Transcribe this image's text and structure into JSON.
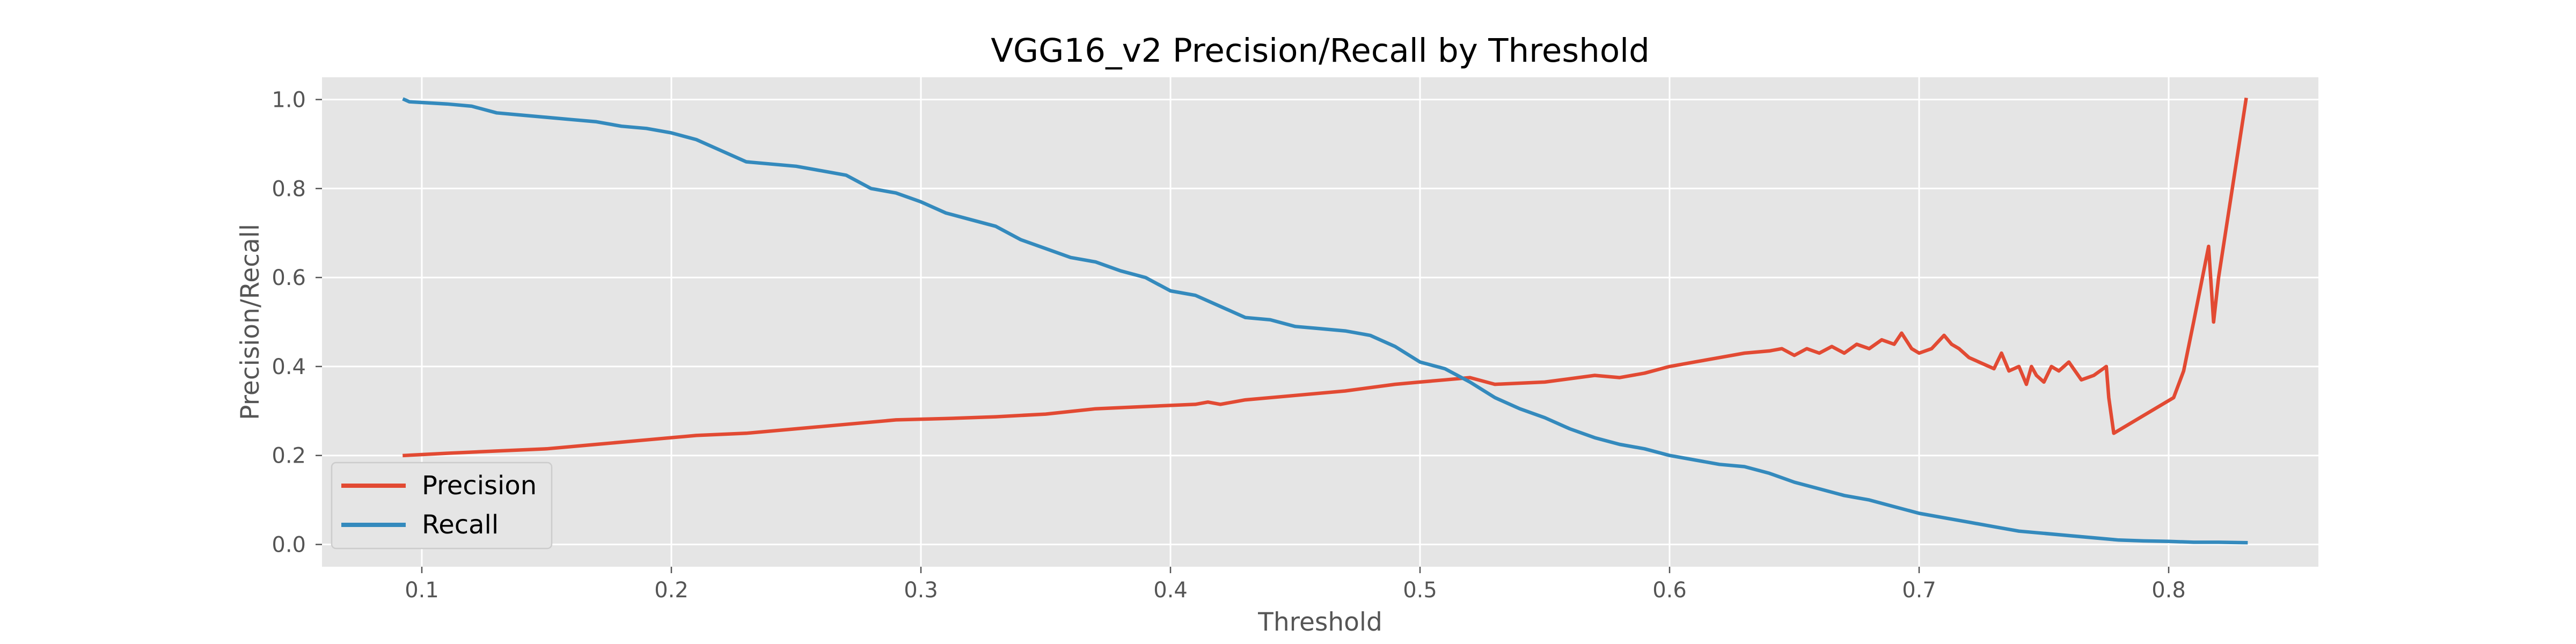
{
  "chart_data": {
    "type": "line",
    "title": "VGG16_v2 Precision/Recall by Threshold",
    "xlabel": "Threshold",
    "ylabel": "Precision/Recall",
    "xlim": [
      0.06,
      0.86
    ],
    "ylim": [
      -0.05,
      1.05
    ],
    "xticks": [
      0.1,
      0.2,
      0.3,
      0.4,
      0.5,
      0.6,
      0.7,
      0.8
    ],
    "xtick_labels": [
      "0.1",
      "0.2",
      "0.3",
      "0.4",
      "0.5",
      "0.6",
      "0.7",
      "0.8"
    ],
    "yticks": [
      0.0,
      0.2,
      0.4,
      0.6,
      0.8,
      1.0
    ],
    "ytick_labels": [
      "0.0",
      "0.2",
      "0.4",
      "0.6",
      "0.8",
      "1.0"
    ],
    "grid": true,
    "legend_position": "lower-left",
    "background_color": "#e5e5e5",
    "series": [
      {
        "name": "Precision",
        "color": "#e24a33",
        "x": [
          0.093,
          0.11,
          0.13,
          0.15,
          0.17,
          0.19,
          0.21,
          0.23,
          0.25,
          0.27,
          0.29,
          0.31,
          0.33,
          0.35,
          0.37,
          0.39,
          0.41,
          0.415,
          0.42,
          0.43,
          0.45,
          0.47,
          0.49,
          0.5,
          0.51,
          0.52,
          0.53,
          0.55,
          0.57,
          0.58,
          0.59,
          0.6,
          0.61,
          0.62,
          0.63,
          0.64,
          0.645,
          0.65,
          0.655,
          0.66,
          0.665,
          0.67,
          0.675,
          0.68,
          0.685,
          0.69,
          0.693,
          0.697,
          0.7,
          0.705,
          0.71,
          0.713,
          0.716,
          0.72,
          0.724,
          0.728,
          0.73,
          0.733,
          0.736,
          0.74,
          0.743,
          0.745,
          0.747,
          0.75,
          0.753,
          0.756,
          0.76,
          0.765,
          0.77,
          0.775,
          0.776,
          0.778,
          0.802,
          0.806,
          0.81,
          0.816,
          0.818,
          0.82,
          0.831
        ],
        "values": [
          0.2,
          0.205,
          0.21,
          0.215,
          0.225,
          0.235,
          0.245,
          0.25,
          0.26,
          0.27,
          0.28,
          0.283,
          0.287,
          0.293,
          0.305,
          0.31,
          0.315,
          0.32,
          0.315,
          0.325,
          0.335,
          0.345,
          0.36,
          0.365,
          0.37,
          0.375,
          0.36,
          0.365,
          0.38,
          0.375,
          0.385,
          0.4,
          0.41,
          0.42,
          0.43,
          0.435,
          0.44,
          0.425,
          0.44,
          0.43,
          0.445,
          0.43,
          0.45,
          0.44,
          0.46,
          0.45,
          0.475,
          0.44,
          0.43,
          0.44,
          0.47,
          0.45,
          0.44,
          0.42,
          0.41,
          0.4,
          0.395,
          0.43,
          0.39,
          0.4,
          0.36,
          0.4,
          0.38,
          0.365,
          0.4,
          0.39,
          0.41,
          0.37,
          0.38,
          0.4,
          0.33,
          0.25,
          0.33,
          0.39,
          0.5,
          0.67,
          0.5,
          0.6,
          1.0
        ]
      },
      {
        "name": "Recall",
        "color": "#348abd",
        "x": [
          0.093,
          0.095,
          0.11,
          0.12,
          0.13,
          0.14,
          0.15,
          0.16,
          0.17,
          0.18,
          0.19,
          0.2,
          0.21,
          0.22,
          0.23,
          0.24,
          0.25,
          0.26,
          0.27,
          0.28,
          0.29,
          0.3,
          0.31,
          0.32,
          0.33,
          0.34,
          0.35,
          0.36,
          0.37,
          0.38,
          0.39,
          0.4,
          0.41,
          0.42,
          0.43,
          0.44,
          0.45,
          0.46,
          0.47,
          0.48,
          0.49,
          0.5,
          0.51,
          0.52,
          0.53,
          0.54,
          0.55,
          0.56,
          0.57,
          0.58,
          0.59,
          0.6,
          0.61,
          0.62,
          0.63,
          0.64,
          0.65,
          0.66,
          0.67,
          0.68,
          0.69,
          0.7,
          0.71,
          0.72,
          0.73,
          0.74,
          0.75,
          0.76,
          0.77,
          0.78,
          0.79,
          0.8,
          0.81,
          0.82,
          0.831
        ],
        "values": [
          1.0,
          0.995,
          0.99,
          0.985,
          0.97,
          0.965,
          0.96,
          0.955,
          0.95,
          0.94,
          0.935,
          0.925,
          0.91,
          0.885,
          0.86,
          0.855,
          0.85,
          0.84,
          0.83,
          0.8,
          0.79,
          0.77,
          0.745,
          0.73,
          0.715,
          0.685,
          0.665,
          0.645,
          0.635,
          0.615,
          0.6,
          0.57,
          0.56,
          0.535,
          0.51,
          0.505,
          0.49,
          0.485,
          0.48,
          0.47,
          0.445,
          0.41,
          0.395,
          0.365,
          0.33,
          0.305,
          0.285,
          0.26,
          0.24,
          0.225,
          0.215,
          0.2,
          0.19,
          0.18,
          0.175,
          0.16,
          0.14,
          0.125,
          0.11,
          0.1,
          0.085,
          0.07,
          0.06,
          0.05,
          0.04,
          0.03,
          0.025,
          0.02,
          0.015,
          0.01,
          0.008,
          0.007,
          0.005,
          0.005,
          0.004
        ]
      }
    ]
  }
}
